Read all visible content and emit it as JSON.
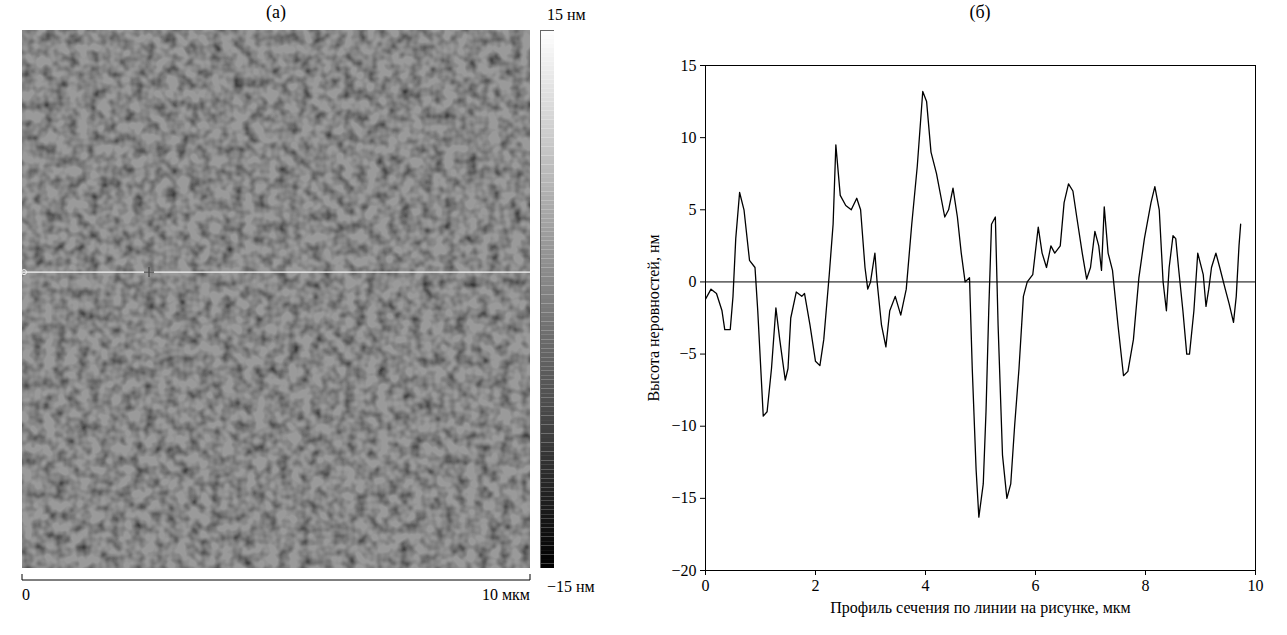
{
  "chart_data": [
    {
      "type": "image",
      "title": "(а)",
      "colorbar": {
        "range": [
          -15,
          15
        ],
        "ticks": [
          {
            "value": 15,
            "label": "15 нм"
          },
          {
            "value": -15,
            "label": "−15 нм"
          }
        ]
      },
      "scale_bar": {
        "range": [
          0,
          10
        ],
        "ticks": [
          {
            "value": 0,
            "label": "0"
          },
          {
            "value": 10,
            "label": "10 мкм"
          }
        ]
      }
    },
    {
      "type": "line",
      "title": "(б)",
      "x_label": "Профиль сечения по линии на рисунке, мкм",
      "y_label": "Высота неровностей, нм",
      "color": "#000000",
      "x": [
        0,
        0.1,
        0.2,
        0.3,
        0.35,
        0.45,
        0.5,
        0.55,
        0.62,
        0.7,
        0.8,
        0.9,
        0.95,
        1.05,
        1.12,
        1.2,
        1.28,
        1.35,
        1.45,
        1.5,
        1.55,
        1.65,
        1.75,
        1.8,
        1.9,
        2.0,
        2.08,
        2.15,
        2.25,
        2.32,
        2.37,
        2.45,
        2.55,
        2.65,
        2.75,
        2.82,
        2.9,
        2.95,
        3.0,
        3.08,
        3.12,
        3.2,
        3.28,
        3.35,
        3.45,
        3.55,
        3.65,
        3.75,
        3.85,
        3.95,
        4.02,
        4.1,
        4.2,
        4.35,
        4.42,
        4.5,
        4.58,
        4.65,
        4.72,
        4.8,
        4.85,
        4.92,
        4.97,
        5.05,
        5.1,
        5.15,
        5.2,
        5.27,
        5.32,
        5.4,
        5.48,
        5.55,
        5.62,
        5.7,
        5.78,
        5.85,
        5.95,
        6.05,
        6.12,
        6.2,
        6.28,
        6.35,
        6.45,
        6.52,
        6.6,
        6.68,
        6.75,
        6.85,
        6.93,
        7.0,
        7.08,
        7.15,
        7.2,
        7.25,
        7.32,
        7.4,
        7.5,
        7.6,
        7.68,
        7.78,
        7.88,
        7.98,
        8.1,
        8.17,
        8.25,
        8.32,
        8.38,
        8.43,
        8.5,
        8.55,
        8.6,
        8.68,
        8.75,
        8.8,
        8.88,
        8.95,
        9.05,
        9.1,
        9.15,
        9.2,
        9.28,
        9.35,
        9.45,
        9.52,
        9.6,
        9.65,
        9.7,
        9.73
      ],
      "values": [
        -1.2,
        -0.5,
        -0.8,
        -2,
        -3.3,
        -3.3,
        -1,
        3,
        6.2,
        5,
        1.5,
        1,
        -2,
        -9.3,
        -9,
        -6,
        -1.8,
        -4,
        -6.8,
        -6,
        -2.5,
        -0.7,
        -1,
        -0.8,
        -3,
        -5.5,
        -5.8,
        -4,
        0.5,
        4,
        9.5,
        6,
        5.3,
        5,
        5.8,
        5,
        1,
        -0.5,
        0,
        2,
        0,
        -3,
        -4.5,
        -2,
        -1,
        -2.3,
        -0.5,
        4,
        8,
        13.2,
        12.5,
        9,
        7.5,
        4.5,
        5,
        6.5,
        4.5,
        2,
        0,
        0.3,
        -6,
        -13,
        -16.3,
        -14,
        -9,
        -2,
        4,
        4.5,
        -3,
        -12,
        -15,
        -14,
        -10,
        -6,
        -1,
        0,
        0.5,
        3.8,
        2,
        1,
        2.5,
        2,
        2.5,
        5.5,
        6.8,
        6.3,
        4.5,
        2,
        0.2,
        1,
        3.5,
        2.5,
        0.8,
        5.2,
        2,
        0.8,
        -3,
        -6.5,
        -6.2,
        -4,
        0.3,
        3,
        5.5,
        6.6,
        5,
        0,
        -2,
        1,
        3.2,
        3,
        1,
        -2,
        -5,
        -5,
        -2,
        2,
        0.5,
        -1.7,
        -0.5,
        1,
        2,
        1,
        -0.5,
        -1.5,
        -2.8,
        -1,
        2.5,
        4
      ],
      "xlim": [
        0,
        10
      ],
      "ylim": [
        -20,
        15
      ],
      "xticks": [
        0,
        2,
        4,
        6,
        8,
        10
      ],
      "yticks": [
        -20,
        -15,
        -10,
        -5,
        0,
        5,
        10,
        15
      ],
      "hline": 0
    }
  ]
}
